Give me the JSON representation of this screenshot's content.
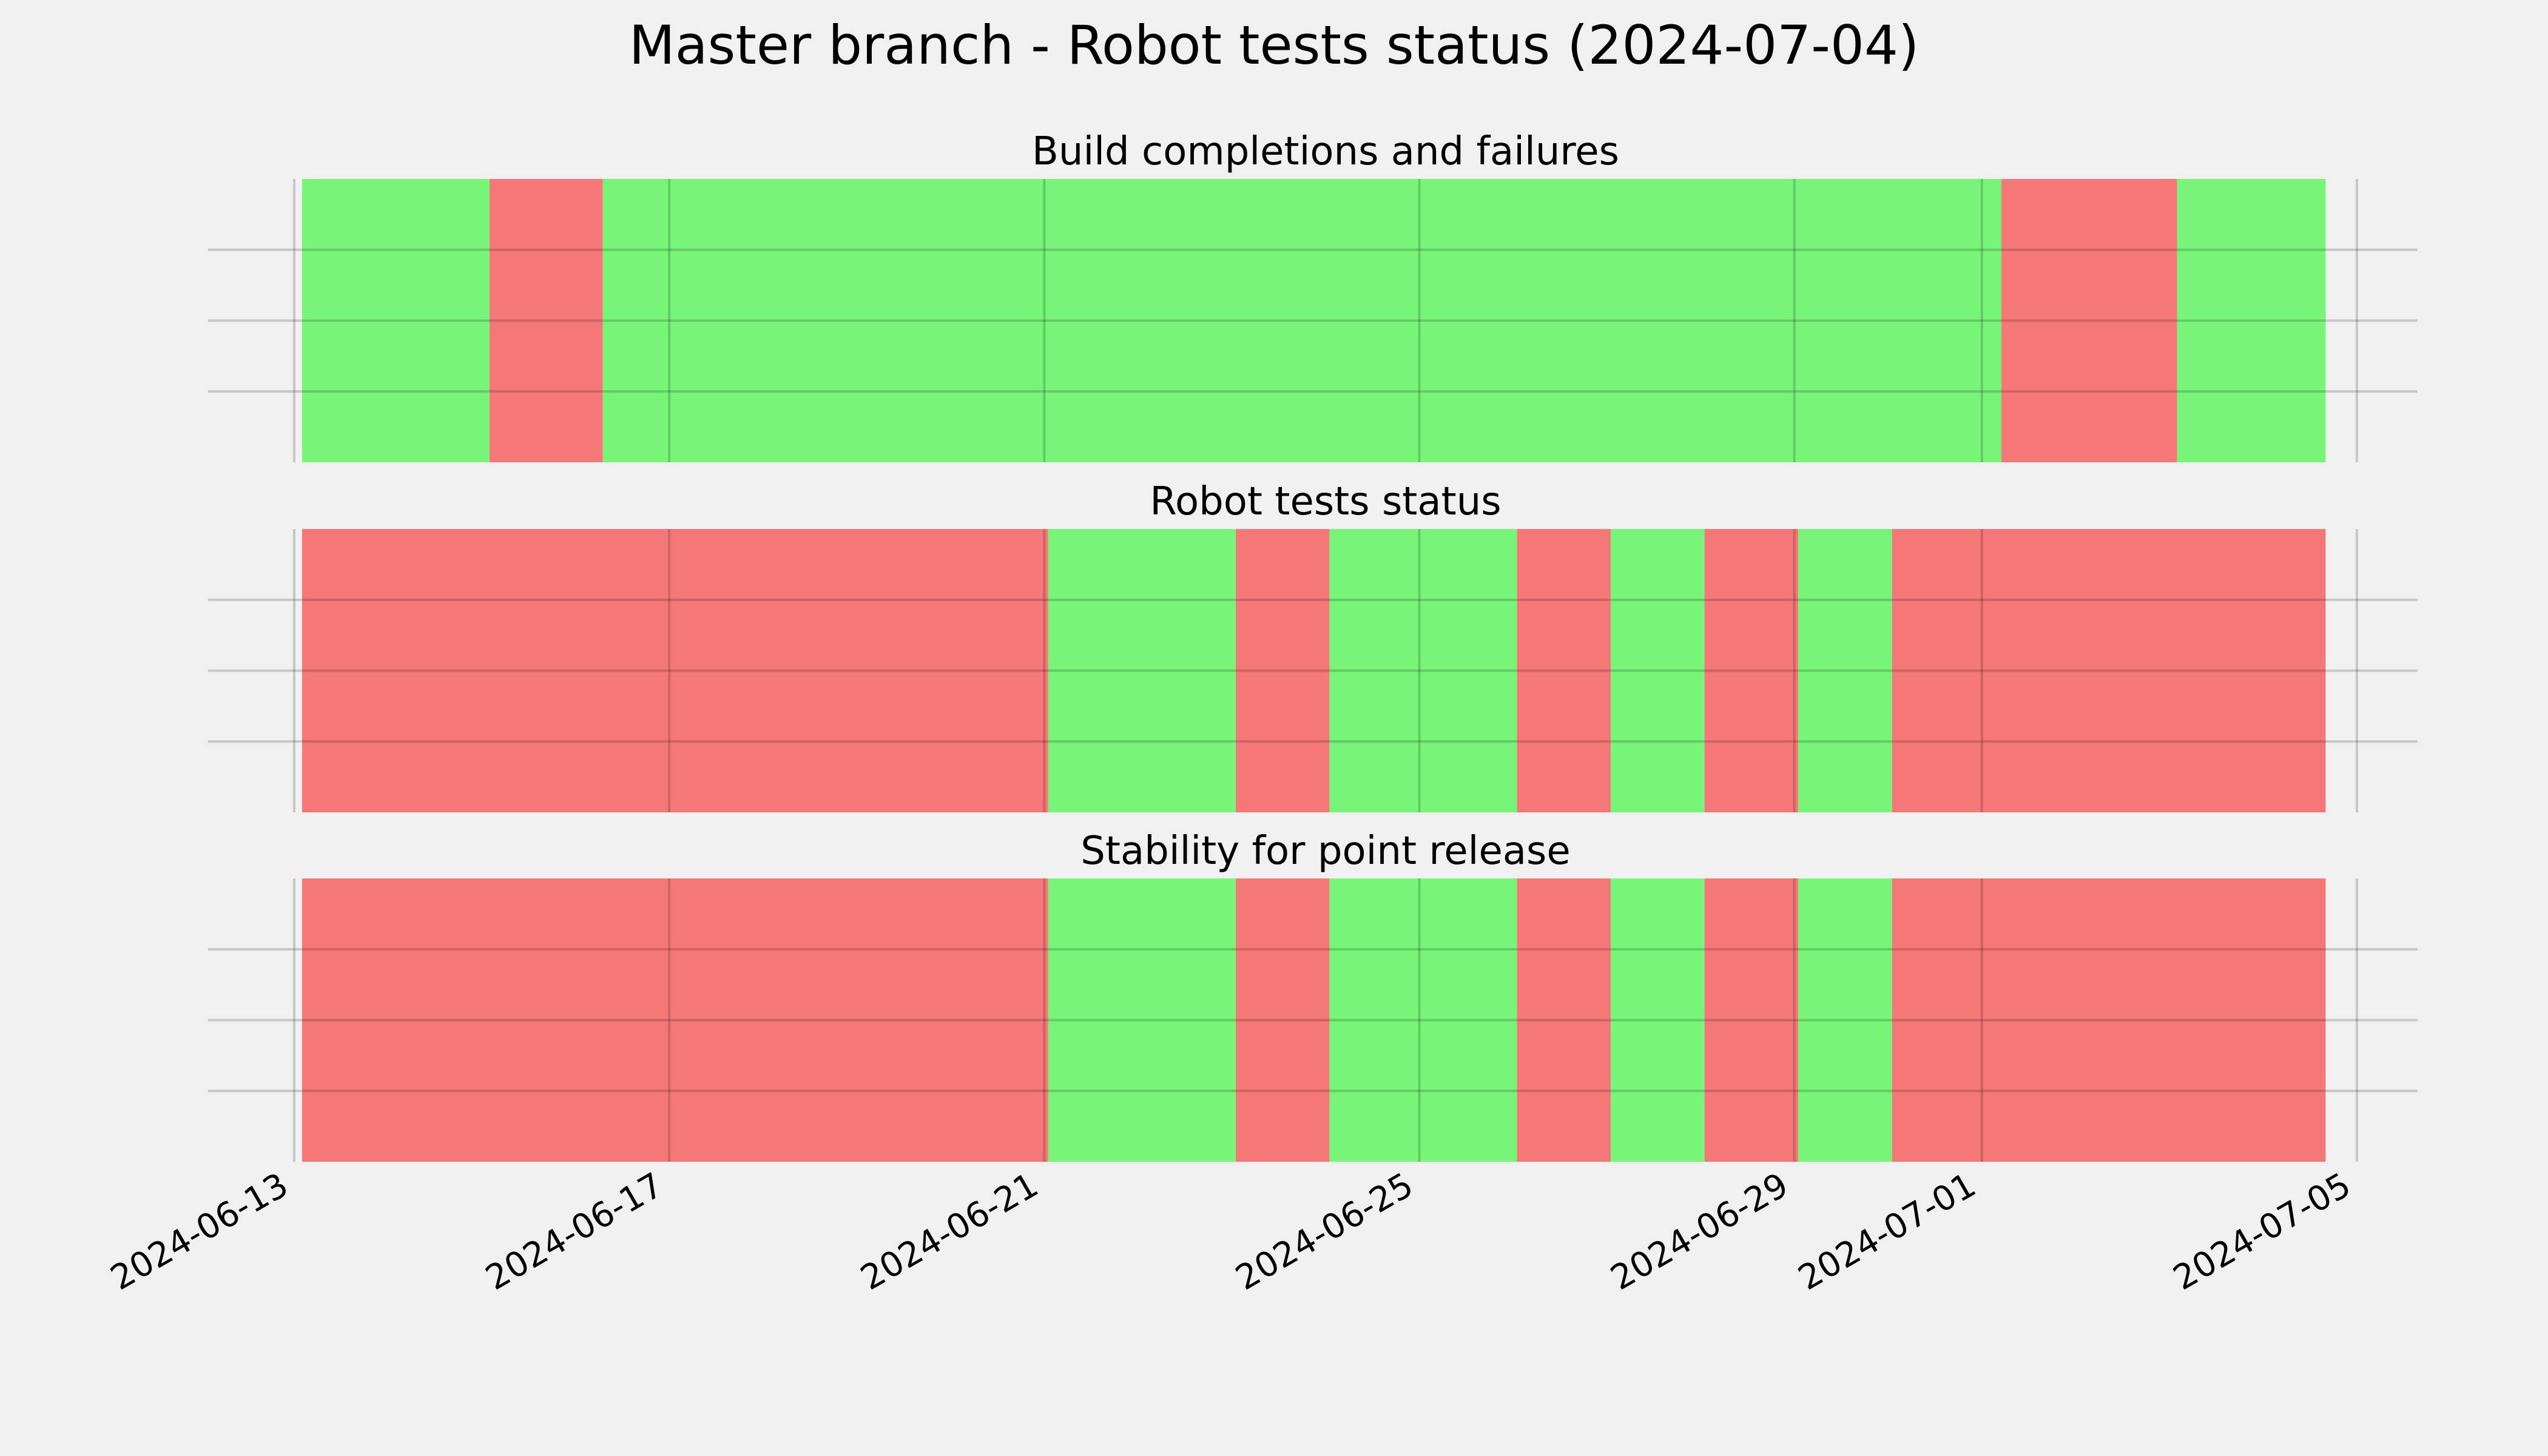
{
  "chart_data": {
    "type": "timeline",
    "title": "Master branch - Robot tests status (2024-07-04)",
    "colors": {
      "pass": "#78f578",
      "fail": "#f57878",
      "grid": "#cbcbcb",
      "background": "#f0f0f0"
    },
    "x_tick_labels": [
      "2024-06-13",
      "2024-06-17",
      "2024-06-21",
      "2024-06-25",
      "2024-06-29",
      "2024-07-01",
      "2024-07-05"
    ],
    "x_range": [
      "2024-06-13",
      "2024-07-05"
    ],
    "grid": true,
    "panels": [
      {
        "title": "Build completions and failures",
        "segments": [
          {
            "start": "2024-06-13 02:00",
            "end": "2024-06-15 02:00",
            "status": "pass"
          },
          {
            "start": "2024-06-15 02:00",
            "end": "2024-06-16 07:00",
            "status": "fail"
          },
          {
            "start": "2024-06-16 07:00",
            "end": "2024-07-01 05:00",
            "status": "pass"
          },
          {
            "start": "2024-07-01 05:00",
            "end": "2024-07-03 02:00",
            "status": "fail"
          },
          {
            "start": "2024-07-03 02:00",
            "end": "2024-07-04 16:00",
            "status": "pass"
          }
        ]
      },
      {
        "title": "Robot tests status",
        "segments": [
          {
            "start": "2024-06-13 02:00",
            "end": "2024-06-21 01:00",
            "status": "fail"
          },
          {
            "start": "2024-06-21 01:00",
            "end": "2024-06-23 01:00",
            "status": "pass"
          },
          {
            "start": "2024-06-23 01:00",
            "end": "2024-06-24 01:00",
            "status": "fail"
          },
          {
            "start": "2024-06-24 01:00",
            "end": "2024-06-26 01:00",
            "status": "pass"
          },
          {
            "start": "2024-06-26 01:00",
            "end": "2024-06-27 01:00",
            "status": "fail"
          },
          {
            "start": "2024-06-27 01:00",
            "end": "2024-06-28 01:00",
            "status": "pass"
          },
          {
            "start": "2024-06-28 01:00",
            "end": "2024-06-29 01:00",
            "status": "fail"
          },
          {
            "start": "2024-06-29 01:00",
            "end": "2024-06-30 01:00",
            "status": "pass"
          },
          {
            "start": "2024-06-30 01:00",
            "end": "2024-07-04 16:00",
            "status": "fail"
          }
        ]
      },
      {
        "title": "Stability for point release",
        "segments": [
          {
            "start": "2024-06-13 02:00",
            "end": "2024-06-21 01:00",
            "status": "fail"
          },
          {
            "start": "2024-06-21 01:00",
            "end": "2024-06-23 01:00",
            "status": "pass"
          },
          {
            "start": "2024-06-23 01:00",
            "end": "2024-06-24 01:00",
            "status": "fail"
          },
          {
            "start": "2024-06-24 01:00",
            "end": "2024-06-26 01:00",
            "status": "pass"
          },
          {
            "start": "2024-06-26 01:00",
            "end": "2024-06-27 01:00",
            "status": "fail"
          },
          {
            "start": "2024-06-27 01:00",
            "end": "2024-06-28 01:00",
            "status": "pass"
          },
          {
            "start": "2024-06-28 01:00",
            "end": "2024-06-29 01:00",
            "status": "fail"
          },
          {
            "start": "2024-06-29 01:00",
            "end": "2024-06-30 01:00",
            "status": "pass"
          },
          {
            "start": "2024-06-30 01:00",
            "end": "2024-07-04 16:00",
            "status": "fail"
          }
        ]
      }
    ]
  }
}
